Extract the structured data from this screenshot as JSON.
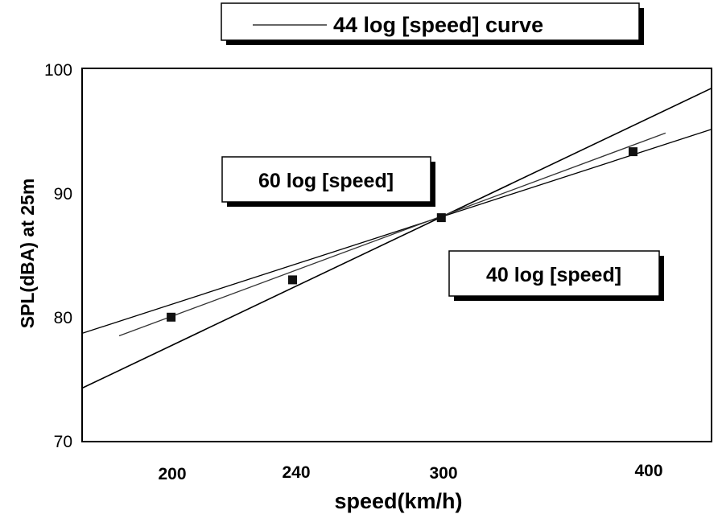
{
  "chart_data": {
    "type": "line",
    "xlabel": "speed(km/h)",
    "ylabel": "SPL(dBA) at 25m",
    "x_scale": "log",
    "xlim": [
      175,
      450
    ],
    "ylim": [
      70,
      100
    ],
    "x_ticks": [
      200,
      240,
      300,
      400
    ],
    "y_ticks": [
      70,
      80,
      90,
      100
    ],
    "points": [
      {
        "x": 200,
        "y": 80.0
      },
      {
        "x": 240,
        "y": 83.0
      },
      {
        "x": 300,
        "y": 88.0
      },
      {
        "x": 400,
        "y": 93.3
      }
    ],
    "series": [
      {
        "name": "60 log [speed]",
        "x": [
          175,
          450
        ],
        "y": [
          74.3,
          98.4
        ],
        "color": "#000000"
      },
      {
        "name": "40 log [speed]",
        "x": [
          175,
          450
        ],
        "y": [
          78.7,
          95.1
        ],
        "color": "#000000"
      },
      {
        "name": "44 log [speed] curve",
        "x": [
          185,
          420
        ],
        "y": [
          78.5,
          94.8
        ],
        "color": "#333333"
      }
    ],
    "legend": "top-center",
    "grid": false
  }
}
